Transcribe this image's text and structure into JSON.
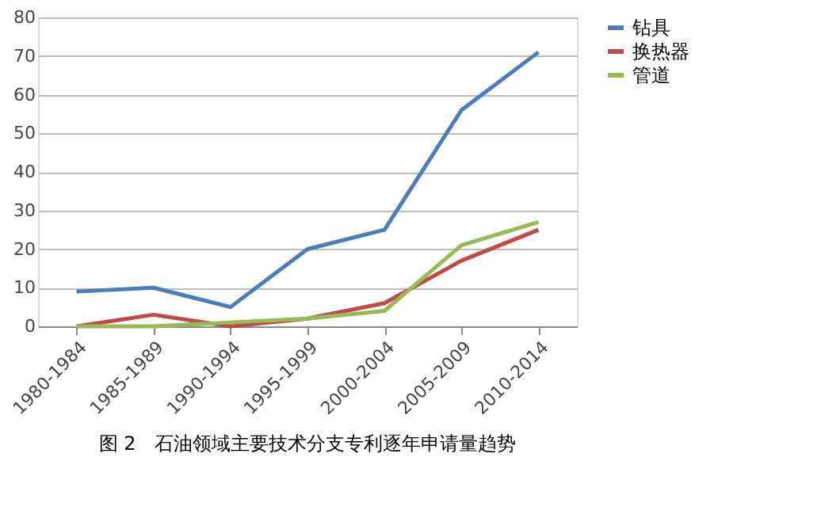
{
  "chart_data": {
    "type": "line",
    "title": "图 2　石油领域主要技术分支专利逐年申请量趋势",
    "categories": [
      "1980-1984",
      "1985-1989",
      "1990-1994",
      "1995-1999",
      "2000-2004",
      "2005-2009",
      "2010-2014"
    ],
    "series": [
      {
        "name": "钻具",
        "color": "#4a7ebb",
        "values": [
          9,
          10,
          5,
          20,
          25,
          56,
          71
        ]
      },
      {
        "name": "换热器",
        "color": "#be4b48",
        "values": [
          0,
          3,
          0,
          2,
          6,
          17,
          25
        ]
      },
      {
        "name": "管道",
        "color": "#98b954",
        "values": [
          0,
          0,
          1,
          2,
          4,
          21,
          27
        ]
      }
    ],
    "ylim": [
      0,
      80
    ],
    "yticks": [
      0,
      10,
      20,
      30,
      40,
      50,
      60,
      70,
      80
    ],
    "grid": "y",
    "legend": "right",
    "marker": "none",
    "line_style": "solid"
  }
}
